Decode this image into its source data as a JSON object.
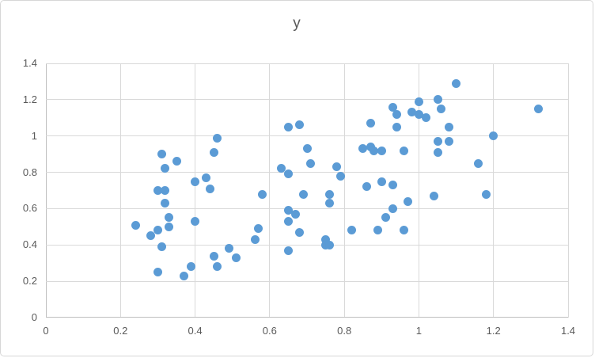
{
  "chart_data": {
    "type": "scatter",
    "title": "y",
    "xlabel": "",
    "ylabel": "",
    "xlim": [
      0,
      1.4
    ],
    "ylim": [
      0,
      1.4
    ],
    "x_ticks": [
      {
        "value": 0,
        "label": "0"
      },
      {
        "value": 0.2,
        "label": "0.2"
      },
      {
        "value": 0.4,
        "label": "0.4"
      },
      {
        "value": 0.6,
        "label": "0.6"
      },
      {
        "value": 0.8,
        "label": "0.8"
      },
      {
        "value": 1,
        "label": "1"
      },
      {
        "value": 1.2,
        "label": "1.2"
      },
      {
        "value": 1.4,
        "label": "1.4"
      }
    ],
    "y_ticks": [
      {
        "value": 0,
        "label": "0"
      },
      {
        "value": 0.2,
        "label": "0.2"
      },
      {
        "value": 0.4,
        "label": "0.4"
      },
      {
        "value": 0.6,
        "label": "0.6"
      },
      {
        "value": 0.8,
        "label": "0.8"
      },
      {
        "value": 1,
        "label": "1"
      },
      {
        "value": 1.2,
        "label": "1.2"
      },
      {
        "value": 1.4,
        "label": "1.4"
      }
    ],
    "grid": true,
    "legend_visible": false,
    "marker_color": "#5b9bd5",
    "gridline_color": "#d9d9d9",
    "axis_line_color": "#bfbfbf",
    "text_color": "#595959",
    "series": [
      {
        "name": "y",
        "points": [
          [
            0.24,
            0.51
          ],
          [
            0.28,
            0.45
          ],
          [
            0.3,
            0.7
          ],
          [
            0.3,
            0.48
          ],
          [
            0.3,
            0.25
          ],
          [
            0.31,
            0.9
          ],
          [
            0.31,
            0.39
          ],
          [
            0.32,
            0.82
          ],
          [
            0.32,
            0.7
          ],
          [
            0.32,
            0.63
          ],
          [
            0.33,
            0.55
          ],
          [
            0.33,
            0.5
          ],
          [
            0.35,
            0.86
          ],
          [
            0.37,
            0.23
          ],
          [
            0.39,
            0.28
          ],
          [
            0.4,
            0.75
          ],
          [
            0.4,
            0.53
          ],
          [
            0.43,
            0.77
          ],
          [
            0.44,
            0.71
          ],
          [
            0.45,
            0.91
          ],
          [
            0.45,
            0.34
          ],
          [
            0.46,
            0.99
          ],
          [
            0.46,
            0.28
          ],
          [
            0.49,
            0.38
          ],
          [
            0.51,
            0.33
          ],
          [
            0.56,
            0.43
          ],
          [
            0.57,
            0.49
          ],
          [
            0.58,
            0.68
          ],
          [
            0.63,
            0.82
          ],
          [
            0.65,
            1.05
          ],
          [
            0.65,
            0.79
          ],
          [
            0.65,
            0.59
          ],
          [
            0.65,
            0.53
          ],
          [
            0.65,
            0.37
          ],
          [
            0.67,
            0.57
          ],
          [
            0.68,
            1.06
          ],
          [
            0.68,
            0.47
          ],
          [
            0.69,
            0.68
          ],
          [
            0.7,
            0.93
          ],
          [
            0.71,
            0.85
          ],
          [
            0.75,
            0.43
          ],
          [
            0.75,
            0.4
          ],
          [
            0.76,
            0.68
          ],
          [
            0.76,
            0.63
          ],
          [
            0.76,
            0.4
          ],
          [
            0.78,
            0.83
          ],
          [
            0.79,
            0.78
          ],
          [
            0.82,
            0.48
          ],
          [
            0.85,
            0.93
          ],
          [
            0.86,
            0.72
          ],
          [
            0.87,
            1.07
          ],
          [
            0.87,
            0.94
          ],
          [
            0.88,
            0.92
          ],
          [
            0.89,
            0.48
          ],
          [
            0.9,
            0.92
          ],
          [
            0.9,
            0.75
          ],
          [
            0.91,
            0.55
          ],
          [
            0.93,
            1.16
          ],
          [
            0.93,
            0.73
          ],
          [
            0.93,
            0.6
          ],
          [
            0.94,
            1.12
          ],
          [
            0.94,
            1.05
          ],
          [
            0.96,
            0.92
          ],
          [
            0.96,
            0.48
          ],
          [
            0.97,
            0.64
          ],
          [
            0.98,
            1.13
          ],
          [
            1.0,
            1.19
          ],
          [
            1.0,
            1.12
          ],
          [
            1.02,
            1.1
          ],
          [
            1.04,
            0.67
          ],
          [
            1.05,
            1.2
          ],
          [
            1.05,
            0.97
          ],
          [
            1.05,
            0.91
          ],
          [
            1.06,
            1.15
          ],
          [
            1.08,
            1.05
          ],
          [
            1.08,
            0.97
          ],
          [
            1.1,
            1.29
          ],
          [
            1.16,
            0.85
          ],
          [
            1.18,
            0.68
          ],
          [
            1.2,
            1.0
          ],
          [
            1.32,
            1.15
          ]
        ]
      }
    ]
  }
}
